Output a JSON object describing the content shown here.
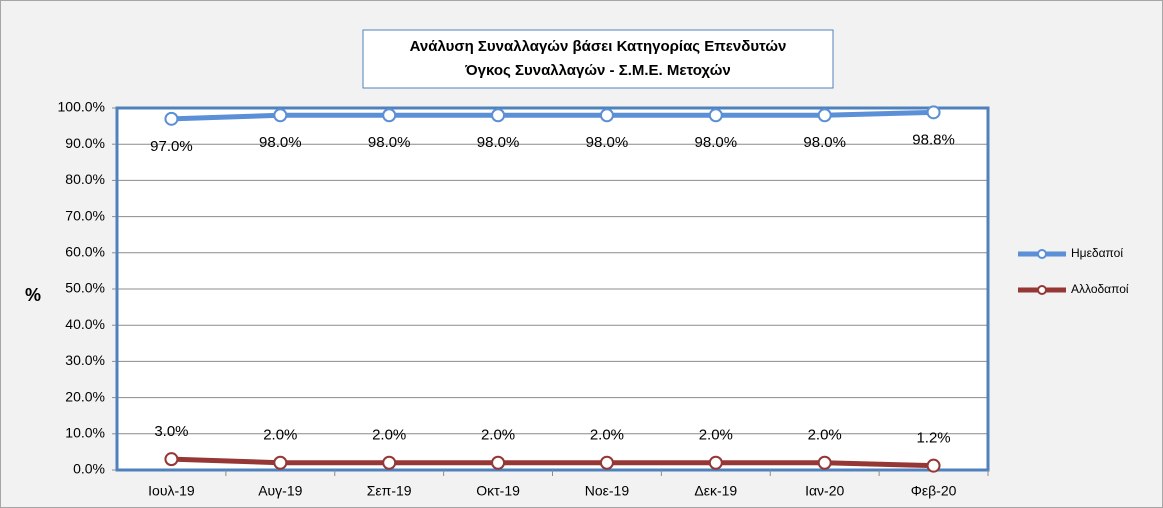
{
  "chart_data": {
    "type": "line",
    "title": "Ανάλυση Συναλλαγών βάσει Κατηγορίας Επενδυτών",
    "subtitle": "Όγκος Συναλλαγών - Σ.Μ.Ε. Μετοχών",
    "y_label": "%",
    "categories": [
      "Ιουλ-19",
      "Αυγ-19",
      "Σεπ-19",
      "Οκτ-19",
      "Νοε-19",
      "Δεκ-19",
      "Ιαν-20",
      "Φεβ-20"
    ],
    "series": [
      {
        "name": "Ημεδαποί",
        "color": "#5b8fd6",
        "values": [
          97.0,
          98.0,
          98.0,
          98.0,
          98.0,
          98.0,
          98.0,
          98.8
        ],
        "value_labels": [
          "97.0%",
          "98.0%",
          "98.0%",
          "98.0%",
          "98.0%",
          "98.0%",
          "98.0%",
          "98.8%"
        ]
      },
      {
        "name": "Αλλοδαποί",
        "color": "#953735",
        "values": [
          3.0,
          2.0,
          2.0,
          2.0,
          2.0,
          2.0,
          2.0,
          1.2
        ],
        "value_labels": [
          "3.0%",
          "2.0%",
          "2.0%",
          "2.0%",
          "2.0%",
          "2.0%",
          "2.0%",
          "1.2%"
        ]
      }
    ],
    "ylim": [
      0,
      100
    ],
    "yticks": [
      {
        "value": 0,
        "label": "0.0%"
      },
      {
        "value": 10,
        "label": "10.0%"
      },
      {
        "value": 20,
        "label": "20.0%"
      },
      {
        "value": 30,
        "label": "30.0%"
      },
      {
        "value": 40,
        "label": "40.0%"
      },
      {
        "value": 50,
        "label": "50.0%"
      },
      {
        "value": 60,
        "label": "60.0%"
      },
      {
        "value": 70,
        "label": "70.0%"
      },
      {
        "value": 80,
        "label": "80.0%"
      },
      {
        "value": 90,
        "label": "90.0%"
      },
      {
        "value": 100,
        "label": "100.0%"
      }
    ],
    "grid": true,
    "legend": "right"
  }
}
